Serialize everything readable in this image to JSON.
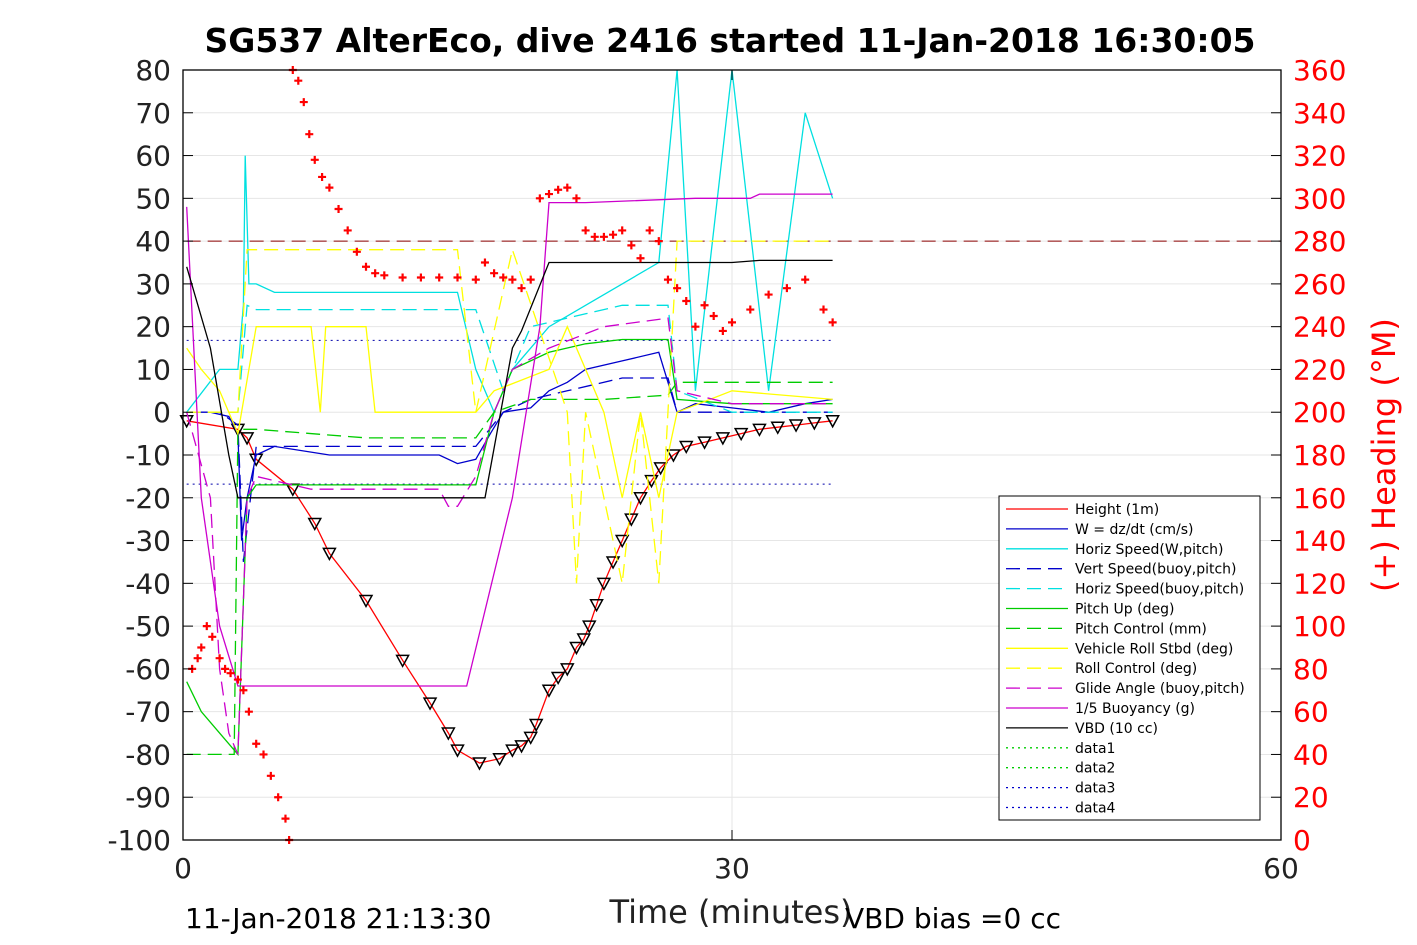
{
  "chart_data": {
    "type": "line",
    "title": "SG537 AlterEco, dive 2416 started 11-Jan-2018 16:30:05",
    "xlabel": "Time (minutes)",
    "ylabel_right": "(+) Heading (°M)",
    "xlim": [
      0,
      60
    ],
    "ylim": [
      -100,
      80
    ],
    "ylim_right": [
      0,
      360
    ],
    "x_ticks": [
      "0",
      "30",
      "60"
    ],
    "y_ticks": [
      "80",
      "70",
      "60",
      "50",
      "40",
      "30",
      "20",
      "10",
      "0",
      "-10",
      "-20",
      "-30",
      "-40",
      "-50",
      "-60",
      "-70",
      "-80",
      "-90",
      "-100"
    ],
    "y_ticks_right": [
      "360",
      "340",
      "320",
      "300",
      "280",
      "260",
      "240",
      "220",
      "200",
      "180",
      "160",
      "140",
      "120",
      "100",
      "80",
      "60",
      "40",
      "20",
      "0"
    ],
    "grid": true,
    "legend_position": "bottom-right",
    "footer_left": "11-Jan-2018 21:13:30",
    "footer_right": "VBD bias =0 cc",
    "reference_lines": [
      {
        "y": 40,
        "color": "#8b0000",
        "style": "dashed"
      },
      {
        "y": 16.8,
        "color": "#0000aa",
        "style": "dotted"
      },
      {
        "y": -16.8,
        "color": "#0000aa",
        "style": "dotted"
      }
    ],
    "series": [
      {
        "name": "Height (1m)",
        "color": "#ff0000",
        "style": "solid",
        "markers": "triangles",
        "x": [
          0.2,
          3.0,
          3.5,
          4.0,
          6.0,
          7.2,
          8.0,
          10.0,
          12.0,
          13.5,
          14.5,
          15.0,
          16.2,
          17.3,
          18.0,
          18.5,
          19.0,
          19.3,
          20.0,
          20.5,
          21.0,
          21.5,
          21.9,
          22.2,
          22.6,
          23.0,
          23.5,
          24.0,
          24.5,
          25.0,
          25.6,
          26.1,
          26.8,
          27.5,
          28.5,
          29.5,
          30.5,
          31.5,
          32.5,
          33.5,
          34.5,
          35.5
        ],
        "y": [
          -2,
          -4,
          -6,
          -11,
          -18,
          -26,
          -33,
          -44,
          -58,
          -68,
          -75,
          -79,
          -82,
          -81,
          -79,
          -78,
          -76,
          -73,
          -65,
          -62,
          -60,
          -55,
          -53,
          -50,
          -45,
          -40,
          -35,
          -30,
          -25,
          -20,
          -16,
          -13,
          -10,
          -8,
          -7,
          -6,
          -5,
          -4,
          -3.5,
          -3,
          -2.5,
          -2
        ]
      },
      {
        "name": "W = dz/dt (cm/s)",
        "color": "#0000cc",
        "style": "solid",
        "x": [
          0.2,
          1.5,
          2.5,
          3.0,
          3.2,
          3.5,
          4.0,
          5.0,
          8.0,
          12.0,
          14.0,
          15.0,
          16.0,
          16.8,
          17.5,
          19.0,
          20.0,
          21.0,
          22.0,
          24.0,
          26.0,
          27.0,
          28.0,
          30.0,
          32.0,
          34.0,
          35.5
        ],
        "y": [
          0,
          0,
          -1,
          -5,
          -30,
          -20,
          -10,
          -8,
          -10,
          -10,
          -10,
          -12,
          -11,
          -5,
          0,
          1,
          5,
          7,
          10,
          12,
          14,
          0,
          2,
          1,
          0,
          2,
          3
        ]
      },
      {
        "name": "Horiz Speed(W,pitch)",
        "color": "#00e0e0",
        "style": "solid",
        "x": [
          0.2,
          2.0,
          3.0,
          3.3,
          3.4,
          3.6,
          4.0,
          5.0,
          8.0,
          12.0,
          15.0,
          16.0,
          16.5,
          17.0,
          18.0,
          20.0,
          22.0,
          24.0,
          26.0,
          27.0,
          28.0,
          30.0,
          32.0,
          34.0,
          35.5
        ],
        "y": [
          0,
          10,
          10,
          25,
          60,
          30,
          30,
          28,
          28,
          28,
          28,
          10,
          5,
          0,
          10,
          20,
          25,
          30,
          35,
          80,
          5,
          80,
          5,
          70,
          50
        ]
      },
      {
        "name": "Vert Speed(buoy,pitch)",
        "color": "#0000cc",
        "style": "dashed",
        "x": [
          0.2,
          2.0,
          3.0,
          3.3,
          4.0,
          6.0,
          10.0,
          14.0,
          16.0,
          17.5,
          19.0,
          21.0,
          24.0,
          26.5,
          27.0,
          30.0,
          35.5
        ],
        "y": [
          0,
          0,
          -3,
          -35,
          -8,
          -8,
          -8,
          -8,
          -8,
          0,
          3,
          5,
          8,
          8,
          0,
          0,
          0
        ]
      },
      {
        "name": "Horiz Speed(buoy,pitch)",
        "color": "#00e0e0",
        "style": "dashed",
        "x": [
          0.2,
          3.0,
          3.5,
          4.0,
          10.0,
          14.0,
          16.0,
          17.5,
          19.0,
          22.0,
          24.0,
          26.5,
          27.0,
          30.0,
          35.5
        ],
        "y": [
          0,
          0,
          25,
          24,
          24,
          24,
          24,
          5,
          20,
          23,
          25,
          25,
          5,
          0,
          0
        ]
      },
      {
        "name": "Pitch Up (deg)",
        "color": "#00cc00",
        "style": "solid",
        "x": [
          0.2,
          1.0,
          2.0,
          3.0,
          3.5,
          4.0,
          6.0,
          10.0,
          14.0,
          16.0,
          17.0,
          18.0,
          20.0,
          22.0,
          24.0,
          26.5,
          27.0,
          30.0,
          35.5
        ],
        "y": [
          -63,
          -70,
          -75,
          -80,
          -20,
          -17,
          -17,
          -17,
          -17,
          -17,
          0,
          10,
          14,
          16,
          17,
          17,
          3,
          2,
          2
        ]
      },
      {
        "name": "Pitch Control (mm)",
        "color": "#00cc00",
        "style": "dashed",
        "x": [
          0.2,
          2.8,
          3.0,
          4.0,
          10.0,
          16.0,
          17.0,
          19.0,
          23.0,
          26.5,
          27.0,
          30.0,
          35.5
        ],
        "y": [
          -80,
          -80,
          -4,
          -4,
          -6,
          -6,
          0,
          3,
          3,
          4,
          7,
          7,
          7
        ]
      },
      {
        "name": "Vehicle Roll Stbd (deg)",
        "color": "#ffff00",
        "style": "solid",
        "x": [
          0.2,
          1.0,
          2.0,
          3.0,
          4.0,
          7.0,
          7.5,
          7.8,
          10.0,
          10.5,
          15.0,
          16.0,
          17.0,
          20.0,
          21.0,
          22.0,
          23.0,
          24.0,
          25.0,
          26.0,
          27.0,
          30.0,
          35.5
        ],
        "y": [
          15,
          10,
          5,
          -5,
          20,
          20,
          0,
          20,
          20,
          0,
          0,
          0,
          5,
          10,
          20,
          10,
          0,
          -20,
          0,
          -20,
          0,
          5,
          3
        ]
      },
      {
        "name": "Roll Control (deg)",
        "color": "#ffff00",
        "style": "dashed",
        "x": [
          0.2,
          3.0,
          3.5,
          6.0,
          10.0,
          15.0,
          16.0,
          18.0,
          21.0,
          21.5,
          22.0,
          24.0,
          25.0,
          26.0,
          27.0,
          30.0,
          35.5
        ],
        "y": [
          0,
          0,
          38,
          38,
          38,
          38,
          0,
          38,
          0,
          -40,
          0,
          -40,
          0,
          -40,
          40,
          40,
          40
        ]
      },
      {
        "name": "Glide Angle (buoy,pitch)",
        "color": "#cc00cc",
        "style": "dashed",
        "x": [
          0.2,
          1.5,
          2.0,
          2.5,
          3.0,
          3.5,
          4.0,
          7.0,
          12.0,
          14.0,
          14.5,
          15.0,
          16.0,
          17.0,
          18.0,
          20.0,
          23.0,
          26.5,
          27.0,
          30.0,
          35.5
        ],
        "y": [
          0,
          -20,
          -60,
          -75,
          -80,
          -20,
          -15,
          -18,
          -18,
          -18,
          -22,
          -22,
          -15,
          0,
          10,
          15,
          20,
          22,
          5,
          2,
          2
        ]
      },
      {
        "name": "1/5 Buoyancy (g)",
        "color": "#cc00cc",
        "style": "solid",
        "x": [
          0.2,
          1.0,
          2.0,
          3.0,
          4.0,
          10.0,
          15.0,
          15.5,
          18.0,
          19.5,
          20.0,
          22.0,
          28.0,
          31.0,
          31.5,
          35.5
        ],
        "y": [
          48,
          -20,
          -50,
          -64,
          -64,
          -64,
          -64,
          -64,
          -20,
          20,
          49,
          49,
          50,
          50,
          51,
          51
        ]
      },
      {
        "name": "VBD (10 cc)",
        "color": "#000000",
        "style": "solid",
        "x": [
          0.2,
          1.5,
          2.5,
          3.0,
          4.0,
          10.0,
          15.0,
          16.5,
          18.0,
          18.5,
          20.0,
          30.0,
          31.5,
          35.5
        ],
        "y": [
          34,
          15,
          -10,
          -20,
          -20,
          -20,
          -20,
          -20,
          15,
          19,
          35,
          35,
          35.5,
          35.5
        ]
      },
      {
        "name": "data1",
        "color": "#00cc00",
        "style": "dotted",
        "x": [],
        "y": []
      },
      {
        "name": "data2",
        "color": "#00cc00",
        "style": "dotted",
        "x": [],
        "y": []
      },
      {
        "name": "data3",
        "color": "#0000cc",
        "style": "dotted",
        "x": [],
        "y": []
      },
      {
        "name": "data4",
        "color": "#0000cc",
        "style": "dotted",
        "x": [],
        "y": []
      }
    ],
    "heading_points": {
      "name": "Heading",
      "axis": "right",
      "color": "#ff0000",
      "marker": "+",
      "x": [
        0.5,
        0.8,
        1.0,
        1.3,
        1.6,
        2.0,
        2.3,
        2.6,
        3.0,
        3.3,
        3.6,
        4.0,
        4.4,
        4.8,
        5.2,
        5.6,
        5.8,
        6.0,
        6.3,
        6.6,
        6.9,
        7.2,
        7.6,
        8.0,
        8.5,
        9.0,
        9.5,
        10.0,
        10.5,
        11.0,
        12.0,
        13.0,
        14.0,
        15.0,
        16.0,
        16.5,
        17.0,
        17.5,
        18.0,
        18.5,
        19.0,
        19.5,
        20.0,
        20.5,
        21.0,
        21.5,
        22.0,
        22.5,
        23.0,
        23.5,
        24.0,
        24.5,
        25.0,
        25.5,
        26.0,
        26.5,
        27.0,
        27.5,
        28.0,
        28.5,
        29.0,
        29.5,
        30.0,
        31.0,
        32.0,
        33.0,
        34.0,
        35.0,
        35.5
      ],
      "y": [
        80,
        85,
        90,
        100,
        95,
        85,
        80,
        78,
        75,
        70,
        60,
        45,
        40,
        30,
        20,
        10,
        0,
        360,
        355,
        345,
        330,
        318,
        310,
        305,
        295,
        285,
        275,
        268,
        265,
        264,
        263,
        263,
        263,
        263,
        262,
        270,
        265,
        263,
        262,
        258,
        262,
        300,
        302,
        304,
        305,
        300,
        285,
        282,
        282,
        283,
        285,
        278,
        272,
        285,
        280,
        262,
        258,
        252,
        240,
        250,
        245,
        238,
        242,
        248,
        255,
        258,
        262,
        248,
        242
      ]
    }
  }
}
